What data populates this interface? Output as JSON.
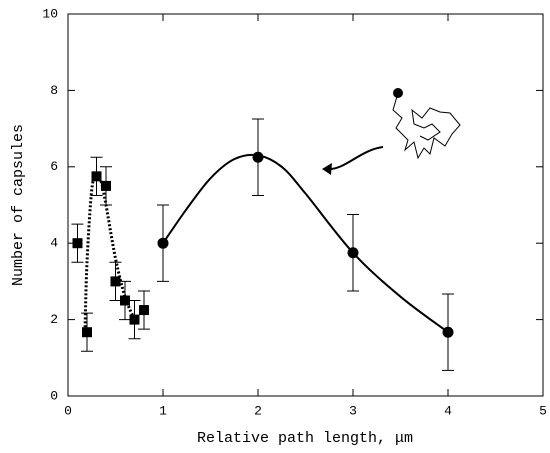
{
  "chart_data": {
    "type": "scatter",
    "xlabel": "Relative path length, μm",
    "ylabel": "Number of capsules",
    "xlim": [
      0,
      5
    ],
    "ylim": [
      0,
      10
    ],
    "xticks": [
      0,
      1,
      2,
      3,
      4,
      5
    ],
    "yticks": [
      0,
      2,
      4,
      6,
      8,
      10
    ],
    "series": [
      {
        "marker": "square",
        "color": "#000000",
        "x": [
          0.1,
          0.2,
          0.3,
          0.4,
          0.5,
          0.6,
          0.7,
          0.8
        ],
        "values": [
          4.0,
          1.67,
          5.75,
          5.5,
          3.0,
          2.5,
          2.0,
          2.25
        ],
        "errors": [
          0.5,
          0.5,
          0.5,
          0.5,
          0.5,
          0.5,
          0.5,
          0.5
        ]
      },
      {
        "marker": "circle",
        "color": "#000000",
        "x": [
          1,
          2,
          3,
          4
        ],
        "values": [
          4.0,
          6.25,
          3.75,
          1.67
        ],
        "errors": [
          1.0,
          1.0,
          1.0,
          1.0
        ]
      }
    ],
    "fits": [
      {
        "style": "dotted",
        "color": "#000000",
        "x": [
          0.18,
          0.2,
          0.25,
          0.3,
          0.35,
          0.4,
          0.5,
          0.6,
          0.7
        ],
        "values": [
          1.8,
          3.5,
          5.4,
          5.75,
          5.6,
          5.0,
          3.6,
          2.6,
          2.0
        ]
      },
      {
        "style": "solid",
        "color": "#000000",
        "x": [
          1,
          1.25,
          1.5,
          1.75,
          2,
          2.25,
          2.5,
          3,
          3.5,
          4
        ],
        "values": [
          4.0,
          4.9,
          5.7,
          6.2,
          6.3,
          6.0,
          5.3,
          3.75,
          2.6,
          1.67
        ]
      }
    ]
  }
}
